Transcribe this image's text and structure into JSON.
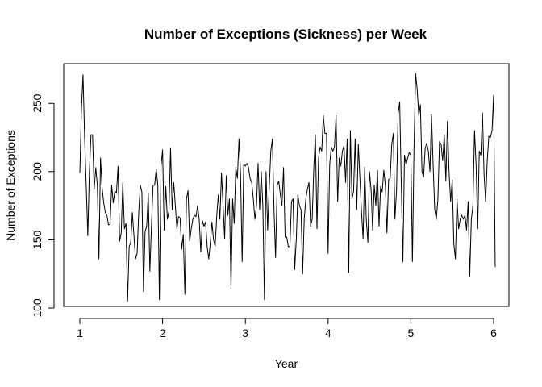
{
  "chart_data": {
    "type": "line",
    "title": "Number of Exceptions (Sickness) per Week",
    "xlabel": "Year",
    "ylabel": "Number of Exceptions",
    "xlim": [
      1,
      6
    ],
    "ylim": [
      100,
      272
    ],
    "xticks": [
      1,
      2,
      3,
      4,
      5,
      6
    ],
    "yticks": [
      100,
      150,
      200,
      250
    ],
    "grid": false,
    "legend": "none",
    "line_color": "#000000",
    "weeks_per_year": 52,
    "series": [
      {
        "values": [
          199,
          246,
          271,
          225,
          190,
          153,
          200,
          227,
          227,
          187,
          203,
          190,
          136,
          210,
          188,
          177,
          170,
          168,
          161,
          161,
          190,
          177,
          186,
          184,
          204,
          149,
          155,
          192,
          158,
          162,
          105,
          145,
          148,
          170,
          153,
          136,
          140,
          170,
          190,
          185,
          112,
          156,
          160,
          184,
          127,
          160,
          190,
          190,
          202,
          190,
          106,
          204,
          216,
          157,
          189,
          165,
          171,
          217,
          172,
          192,
          175,
          158,
          167,
          166,
          143,
          154,
          110,
          180,
          186,
          149,
          158,
          165,
          168,
          167,
          175,
          165,
          141,
          164,
          160,
          163,
          145,
          136,
          148,
          163,
          150,
          145,
          167,
          183,
          165,
          199,
          175,
          151,
          197,
          168,
          180,
          114,
          180,
          162,
          203,
          195,
          224,
          198,
          134,
          205,
          204,
          206,
          203,
          195,
          192,
          180,
          165,
          175,
          206,
          172,
          200,
          175,
          106,
          200,
          157,
          188,
          215,
          224,
          172,
          137,
          190,
          193,
          183,
          175,
          203,
          152,
          152,
          145,
          145,
          178,
          180,
          128,
          150,
          183,
          175,
          172,
          125,
          165,
          180,
          187,
          192,
          160,
          165,
          202,
          227,
          158,
          210,
          218,
          215,
          241,
          228,
          228,
          140,
          205,
          218,
          215,
          218,
          241,
          178,
          210,
          204,
          215,
          219,
          192,
          224,
          126,
          230,
          180,
          185,
          224,
          172,
          220,
          195,
          170,
          151,
          203,
          165,
          148,
          200,
          187,
          157,
          190,
          175,
          201,
          160,
          189,
          185,
          201,
          190,
          155,
          194,
          195,
          220,
          228,
          165,
          186,
          243,
          251,
          190,
          134,
          212,
          205,
          210,
          214,
          212,
          134,
          218,
          272,
          260,
          241,
          249,
          200,
          196,
          217,
          221,
          215,
          200,
          242,
          205,
          172,
          165,
          180,
          222,
          220,
          208,
          227,
          193,
          237,
          200,
          178,
          194,
          147,
          136,
          180,
          158,
          165,
          168,
          165,
          168,
          157,
          178,
          123,
          165,
          175,
          230,
          205,
          158,
          215,
          212,
          243,
          198,
          178,
          208,
          226,
          225,
          230,
          256,
          130
        ]
      }
    ]
  }
}
